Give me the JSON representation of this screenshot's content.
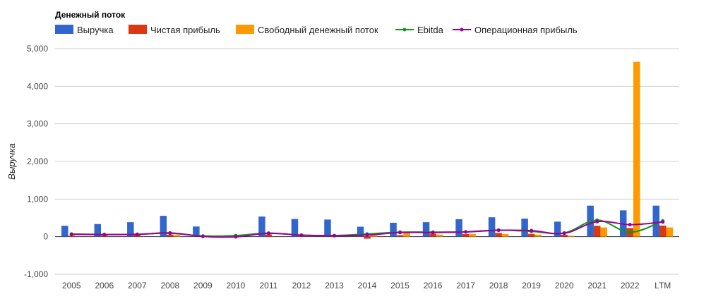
{
  "chart_data": {
    "type": "bar",
    "title": "Денежный поток",
    "ylabel": "Выручка",
    "xlabel": "",
    "ylim": [
      -1000,
      5000
    ],
    "yticks": [
      5000,
      4000,
      3000,
      2000,
      1000,
      0,
      -1000
    ],
    "ytick_labels": [
      "5,000",
      "4,000",
      "3,000",
      "2,000",
      "1,000",
      "0",
      "-1,000"
    ],
    "grid": true,
    "legend_position": "top-left",
    "categories": [
      "2005",
      "2006",
      "2007",
      "2008",
      "2009",
      "2010",
      "2011",
      "2012",
      "2013",
      "2014",
      "2015",
      "2016",
      "2017",
      "2018",
      "2019",
      "2020",
      "2021",
      "2022",
      "LTM"
    ],
    "series": [
      {
        "name": "Выручка",
        "kind": "bar",
        "color": "#3366cc",
        "values": [
          290,
          335,
          385,
          555,
          270,
          null,
          535,
          470,
          455,
          265,
          370,
          385,
          465,
          515,
          480,
          400,
          825,
          700,
          825
        ]
      },
      {
        "name": "Чистая прибыль",
        "kind": "bar",
        "color": "#dc3912",
        "values": [
          25,
          30,
          45,
          55,
          5,
          null,
          60,
          25,
          20,
          -55,
          40,
          80,
          70,
          100,
          75,
          50,
          290,
          230,
          295
        ]
      },
      {
        "name": "Свободный денежный поток",
        "kind": "bar",
        "color": "#ff9900",
        "values": [
          null,
          null,
          null,
          45,
          null,
          null,
          null,
          null,
          null,
          35,
          95,
          55,
          70,
          70,
          55,
          25,
          245,
          4650,
          245
        ]
      },
      {
        "name": "Ebitda",
        "kind": "line",
        "color": "#109618",
        "values": [
          70,
          60,
          65,
          90,
          20,
          30,
          95,
          40,
          30,
          70,
          120,
          120,
          130,
          175,
          140,
          100,
          440,
          120,
          420
        ]
      },
      {
        "name": "Операционная прибыль",
        "kind": "line",
        "color": "#990099",
        "values": [
          60,
          55,
          60,
          100,
          5,
          -5,
          90,
          40,
          25,
          45,
          110,
          110,
          125,
          170,
          160,
          90,
          400,
          320,
          390
        ]
      }
    ]
  }
}
